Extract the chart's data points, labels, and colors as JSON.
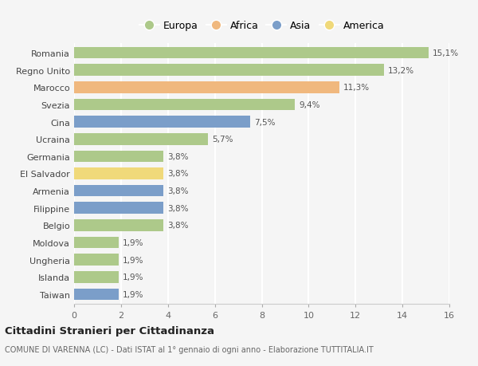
{
  "categories": [
    "Romania",
    "Regno Unito",
    "Marocco",
    "Svezia",
    "Cina",
    "Ucraina",
    "Germania",
    "El Salvador",
    "Armenia",
    "Filippine",
    "Belgio",
    "Moldova",
    "Ungheria",
    "Islanda",
    "Taiwan"
  ],
  "values": [
    15.1,
    13.2,
    11.3,
    9.4,
    7.5,
    5.7,
    3.8,
    3.8,
    3.8,
    3.8,
    3.8,
    1.9,
    1.9,
    1.9,
    1.9
  ],
  "continents": [
    "Europa",
    "Europa",
    "Africa",
    "Europa",
    "Asia",
    "Europa",
    "Europa",
    "America",
    "Asia",
    "Asia",
    "Europa",
    "Europa",
    "Europa",
    "Europa",
    "Asia"
  ],
  "colors": {
    "Europa": "#adc98a",
    "Africa": "#f0b87e",
    "Asia": "#7b9ec9",
    "America": "#f0d97a"
  },
  "legend_order": [
    "Europa",
    "Africa",
    "Asia",
    "America"
  ],
  "labels": [
    "15,1%",
    "13,2%",
    "11,3%",
    "9,4%",
    "7,5%",
    "5,7%",
    "3,8%",
    "3,8%",
    "3,8%",
    "3,8%",
    "3,8%",
    "1,9%",
    "1,9%",
    "1,9%",
    "1,9%"
  ],
  "xlim": [
    0,
    16
  ],
  "xticks": [
    0,
    2,
    4,
    6,
    8,
    10,
    12,
    14,
    16
  ],
  "title": "Cittadini Stranieri per Cittadinanza",
  "subtitle": "COMUNE DI VARENNA (LC) - Dati ISTAT al 1° gennaio di ogni anno - Elaborazione TUTTITALIA.IT",
  "background_color": "#f5f5f5",
  "grid_color": "#ffffff",
  "bar_height": 0.68
}
